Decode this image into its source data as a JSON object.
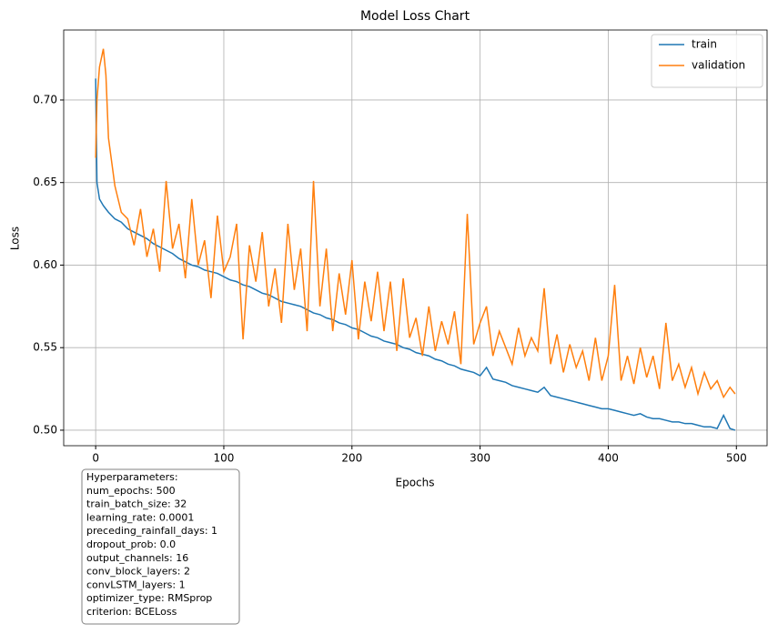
{
  "chart_data": {
    "type": "line",
    "title": "Model Loss Chart",
    "x_label": "Epochs",
    "y_label": "Loss",
    "x": [
      0,
      1,
      3,
      6,
      8,
      10,
      15,
      20,
      25,
      30,
      35,
      40,
      45,
      50,
      55,
      60,
      65,
      70,
      75,
      80,
      85,
      90,
      95,
      100,
      105,
      110,
      115,
      120,
      125,
      130,
      135,
      140,
      145,
      150,
      155,
      160,
      165,
      170,
      175,
      180,
      185,
      190,
      195,
      200,
      205,
      210,
      215,
      220,
      225,
      230,
      235,
      240,
      245,
      250,
      255,
      260,
      265,
      270,
      275,
      280,
      285,
      290,
      295,
      300,
      305,
      310,
      315,
      320,
      325,
      330,
      335,
      340,
      345,
      350,
      355,
      360,
      365,
      370,
      375,
      380,
      385,
      390,
      395,
      400,
      405,
      410,
      415,
      420,
      425,
      430,
      435,
      440,
      445,
      450,
      455,
      460,
      465,
      470,
      475,
      480,
      485,
      490,
      495,
      499
    ],
    "series": [
      {
        "name": "train",
        "color": "#1f77b4",
        "values": [
          0.713,
          0.65,
          0.64,
          0.636,
          0.634,
          0.632,
          0.628,
          0.626,
          0.622,
          0.62,
          0.618,
          0.616,
          0.613,
          0.611,
          0.609,
          0.607,
          0.604,
          0.602,
          0.6,
          0.599,
          0.597,
          0.596,
          0.595,
          0.593,
          0.591,
          0.59,
          0.588,
          0.587,
          0.585,
          0.583,
          0.582,
          0.58,
          0.578,
          0.577,
          0.576,
          0.575,
          0.573,
          0.571,
          0.57,
          0.568,
          0.567,
          0.565,
          0.564,
          0.562,
          0.561,
          0.559,
          0.557,
          0.556,
          0.554,
          0.553,
          0.552,
          0.55,
          0.549,
          0.547,
          0.546,
          0.545,
          0.543,
          0.542,
          0.54,
          0.539,
          0.537,
          0.536,
          0.535,
          0.533,
          0.538,
          0.531,
          0.53,
          0.529,
          0.527,
          0.526,
          0.525,
          0.524,
          0.523,
          0.526,
          0.521,
          0.52,
          0.519,
          0.518,
          0.517,
          0.516,
          0.515,
          0.514,
          0.513,
          0.513,
          0.512,
          0.511,
          0.51,
          0.509,
          0.51,
          0.508,
          0.507,
          0.507,
          0.506,
          0.505,
          0.505,
          0.504,
          0.504,
          0.503,
          0.502,
          0.502,
          0.501,
          0.509,
          0.501,
          0.5
        ]
      },
      {
        "name": "validation",
        "color": "#ff7f0e",
        "values": [
          0.665,
          0.7,
          0.72,
          0.731,
          0.715,
          0.677,
          0.648,
          0.632,
          0.628,
          0.612,
          0.634,
          0.605,
          0.622,
          0.596,
          0.651,
          0.61,
          0.625,
          0.592,
          0.64,
          0.6,
          0.615,
          0.58,
          0.63,
          0.596,
          0.605,
          0.625,
          0.555,
          0.612,
          0.59,
          0.62,
          0.575,
          0.598,
          0.565,
          0.625,
          0.585,
          0.61,
          0.56,
          0.651,
          0.575,
          0.61,
          0.56,
          0.595,
          0.57,
          0.603,
          0.555,
          0.59,
          0.566,
          0.596,
          0.56,
          0.59,
          0.548,
          0.592,
          0.556,
          0.568,
          0.545,
          0.575,
          0.548,
          0.566,
          0.552,
          0.572,
          0.54,
          0.631,
          0.552,
          0.565,
          0.575,
          0.545,
          0.56,
          0.55,
          0.54,
          0.562,
          0.545,
          0.556,
          0.548,
          0.586,
          0.54,
          0.558,
          0.535,
          0.552,
          0.538,
          0.548,
          0.53,
          0.556,
          0.53,
          0.545,
          0.588,
          0.53,
          0.545,
          0.528,
          0.55,
          0.532,
          0.545,
          0.525,
          0.565,
          0.53,
          0.54,
          0.526,
          0.538,
          0.522,
          0.535,
          0.525,
          0.53,
          0.52,
          0.526,
          0.522
        ]
      }
    ],
    "xlim": [
      -24.95,
      523.95
    ],
    "ylim": [
      0.4906,
      0.7424
    ],
    "xticks": [
      0,
      100,
      200,
      300,
      400,
      500
    ],
    "yticks": [
      {
        "value": 0.5,
        "label": "0.50"
      },
      0.55,
      {
        "value": 0.6,
        "label": "0.60"
      },
      0.65,
      {
        "value": 0.7,
        "label": "0.70"
      }
    ],
    "grid": true,
    "legend": "upper right",
    "annotation": [
      "Hyperparameters:",
      "num_epochs: 500",
      "train_batch_size: 32",
      "learning_rate: 0.0001",
      "preceding_rainfall_days: 1",
      "dropout_prob: 0.0",
      "output_channels: 16",
      "conv_block_layers: 2",
      "convLSTM_layers: 1",
      "optimizer_type: RMSprop",
      "criterion: BCELoss"
    ]
  }
}
